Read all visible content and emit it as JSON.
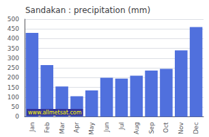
{
  "chart_data": {
    "type": "bar",
    "title": "Sandakan : precipitation (mm)",
    "categories": [
      "Jan",
      "Feb",
      "Mar",
      "Apr",
      "May",
      "Jun",
      "Jul",
      "Aug",
      "Sep",
      "Oct",
      "Nov",
      "Dec"
    ],
    "values": [
      430,
      265,
      155,
      105,
      135,
      200,
      195,
      210,
      237,
      245,
      340,
      460
    ],
    "ylim": [
      0,
      500
    ],
    "yticks": [
      0,
      50,
      100,
      150,
      200,
      250,
      300,
      350,
      400,
      450,
      500
    ],
    "grid": true,
    "annotations": [
      "www.allmetsat.com"
    ]
  }
}
